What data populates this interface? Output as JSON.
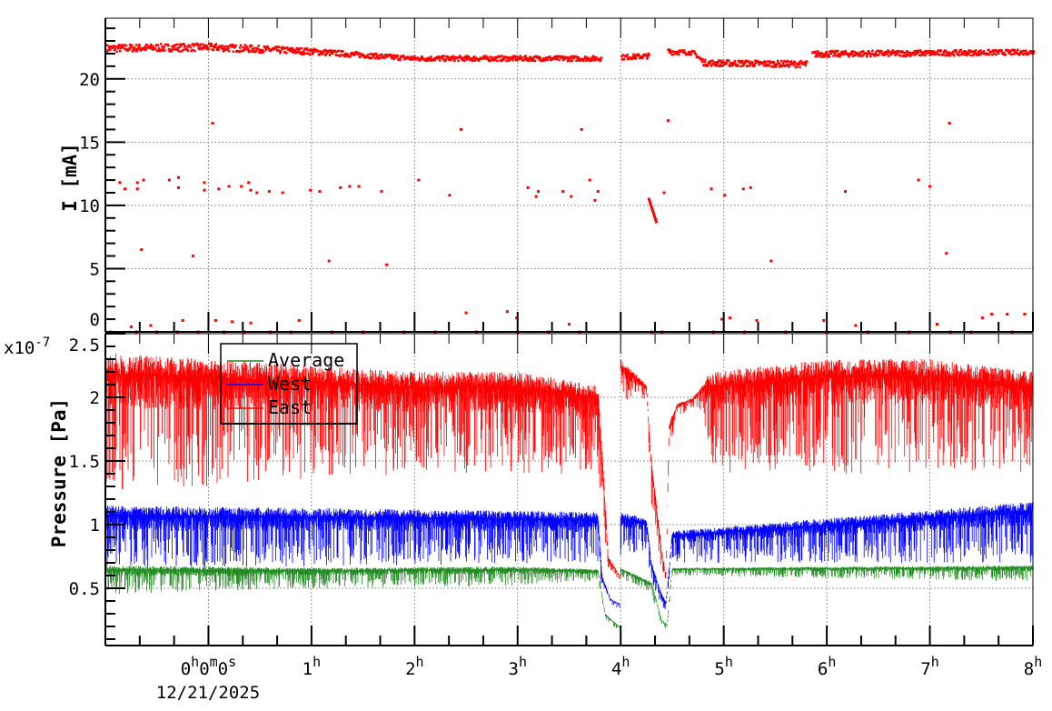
{
  "chart_data": [
    {
      "type": "scatter",
      "ylabel": "I [mA]",
      "ylim": [
        0,
        24.8
      ],
      "xlim_hours": [
        -1,
        8
      ],
      "yticks": [
        "0",
        "5",
        "10",
        "15",
        "20"
      ],
      "grid": true,
      "color": "#ff0000",
      "band_segments": [
        [
          [
            -1,
            22.2,
            22.8
          ],
          [
            0,
            22.3,
            22.9
          ],
          [
            1,
            22.0,
            22.5
          ],
          [
            1.6,
            21.7,
            22.1
          ],
          [
            2,
            21.5,
            21.9
          ],
          [
            3.8,
            21.5,
            21.9
          ]
        ],
        [
          [
            4.0,
            21.6,
            22.0
          ],
          [
            4.27,
            21.7,
            22.1
          ]
        ],
        [
          [
            4.45,
            22.0,
            22.5
          ],
          [
            4.7,
            22.0,
            22.3
          ],
          [
            4.8,
            21.1,
            21.6
          ],
          [
            5.8,
            21.0,
            21.5
          ]
        ],
        [
          [
            5.85,
            21.8,
            22.3
          ],
          [
            8,
            22.0,
            22.4
          ]
        ]
      ],
      "descending_trace": [
        [
          4.27,
          10.6
        ],
        [
          4.35,
          8.6
        ]
      ],
      "points": [
        [
          -0.86,
          11.8
        ],
        [
          -0.81,
          11.3
        ],
        [
          -0.69,
          11.8
        ],
        [
          -0.69,
          11.3
        ],
        [
          -0.65,
          6.5
        ],
        [
          -0.63,
          12
        ],
        [
          -0.38,
          12
        ],
        [
          -0.29,
          12.2
        ],
        [
          -0.29,
          11.4
        ],
        [
          -0.15,
          6
        ],
        [
          -0.04,
          11.8
        ],
        [
          -0.04,
          11.2
        ],
        [
          0.04,
          16.5
        ],
        [
          0.1,
          11.3
        ],
        [
          0.2,
          11.5
        ],
        [
          0.32,
          11.5
        ],
        [
          0.39,
          11.8
        ],
        [
          0.41,
          11.2
        ],
        [
          0.47,
          11
        ],
        [
          0.59,
          11.1
        ],
        [
          0.72,
          11
        ],
        [
          0.99,
          11.2
        ],
        [
          1.08,
          11.1
        ],
        [
          1.17,
          5.6
        ],
        [
          1.28,
          11.4
        ],
        [
          1.37,
          11.5
        ],
        [
          1.46,
          11.5
        ],
        [
          1.68,
          11.1
        ],
        [
          1.73,
          5.3
        ],
        [
          2.04,
          12
        ],
        [
          2.34,
          10.8
        ],
        [
          2.45,
          16
        ],
        [
          3.1,
          11.4
        ],
        [
          3.18,
          10.7
        ],
        [
          3.2,
          11.1
        ],
        [
          3.44,
          11.1
        ],
        [
          3.52,
          10.7
        ],
        [
          3.62,
          16
        ],
        [
          3.7,
          12
        ],
        [
          3.75,
          10.4
        ],
        [
          3.78,
          11.1
        ],
        [
          4.42,
          11
        ],
        [
          4.46,
          16.7
        ],
        [
          4.88,
          11.3
        ],
        [
          5.01,
          10.8
        ],
        [
          5.19,
          11.3
        ],
        [
          5.26,
          11.4
        ],
        [
          5.46,
          5.6
        ],
        [
          6.18,
          11.1
        ],
        [
          6.89,
          12
        ],
        [
          7.0,
          11.5
        ],
        [
          7.16,
          6.2
        ],
        [
          7.19,
          16.5
        ],
        [
          -0.75,
          0.4
        ],
        [
          -0.56,
          0.5
        ],
        [
          -0.25,
          0.9
        ],
        [
          0.07,
          0.9
        ],
        [
          0.23,
          0.8
        ],
        [
          0.41,
          0.7
        ],
        [
          0.88,
          0.9
        ],
        [
          2.5,
          1.5
        ],
        [
          2.9,
          1.6
        ],
        [
          2.99,
          1.1
        ],
        [
          3.5,
          0.6
        ],
        [
          4.98,
          1.0
        ],
        [
          5.06,
          1.1
        ],
        [
          5.32,
          0.9
        ],
        [
          5.97,
          0.9
        ],
        [
          6.28,
          0.5
        ],
        [
          7.07,
          0.6
        ],
        [
          7.51,
          1.1
        ],
        [
          7.6,
          1.4
        ],
        [
          7.75,
          1.4
        ],
        [
          7.92,
          1.4
        ],
        [
          -0.95,
          0
        ],
        [
          -0.7,
          0
        ],
        [
          -0.5,
          0
        ],
        [
          -0.3,
          0
        ],
        [
          -0.1,
          0
        ],
        [
          0.15,
          0
        ],
        [
          0.35,
          0
        ],
        [
          0.6,
          0
        ],
        [
          0.8,
          0
        ],
        [
          1.2,
          0
        ],
        [
          1.5,
          0
        ],
        [
          1.9,
          0
        ],
        [
          2.2,
          0
        ],
        [
          2.6,
          0
        ],
        [
          3.0,
          0
        ],
        [
          3.3,
          0
        ],
        [
          3.6,
          0
        ],
        [
          4.3,
          0
        ],
        [
          4.4,
          0
        ],
        [
          4.9,
          0
        ],
        [
          5.2,
          0
        ],
        [
          5.6,
          0
        ],
        [
          6.0,
          0
        ],
        [
          6.4,
          0
        ],
        [
          6.8,
          0
        ],
        [
          7.2,
          0
        ],
        [
          7.4,
          0
        ],
        [
          7.8,
          0
        ]
      ]
    },
    {
      "type": "line",
      "ylabel": "Pressure [Pa]",
      "exponent_label": "x10",
      "exponent": "-7",
      "ylim": [
        0.05,
        2.5
      ],
      "xlim_hours": [
        -1,
        8
      ],
      "yticks": [
        "0.5",
        "1",
        "1.5",
        "2",
        "2.5"
      ],
      "grid": true,
      "legend_position": "top-left",
      "series": [
        {
          "name": "East",
          "color": "#ff0000",
          "envelope": [
            [
              [
                -1,
                1.25,
                2.35
              ],
              [
                0,
                1.3,
                2.3
              ],
              [
                1,
                1.35,
                2.25
              ],
              [
                2,
                1.4,
                2.2
              ],
              [
                3,
                1.4,
                2.2
              ],
              [
                3.78,
                1.4,
                2.1
              ],
              [
                3.82,
                1.0,
                1.6
              ],
              [
                3.88,
                0.65,
                0.75
              ],
              [
                3.99,
                0.56,
                0.6
              ]
            ],
            [
              [
                4.0,
                1.95,
                2.3
              ],
              [
                4.25,
                1.98,
                2.1
              ],
              [
                4.3,
                1.1,
                1.5
              ],
              [
                4.4,
                0.6,
                0.8
              ],
              [
                4.44,
                0.55,
                0.6
              ],
              [
                4.47,
                1.6,
                1.8
              ],
              [
                4.55,
                1.85,
                1.95
              ],
              [
                4.7,
                1.9,
                2.0
              ],
              [
                4.8,
                1.9,
                2.1
              ],
              [
                4.85,
                1.4,
                2.2
              ],
              [
                6,
                1.4,
                2.3
              ],
              [
                7,
                1.4,
                2.3
              ],
              [
                8,
                1.4,
                2.2
              ]
            ]
          ]
        },
        {
          "name": "West",
          "color": "#0000ff",
          "envelope": [
            [
              [
                -1,
                0.65,
                1.15
              ],
              [
                3.78,
                0.7,
                1.1
              ],
              [
                3.82,
                0.45,
                0.6
              ],
              [
                3.9,
                0.38,
                0.42
              ],
              [
                3.99,
                0.33,
                0.38
              ]
            ],
            [
              [
                4.0,
                0.75,
                1.1
              ],
              [
                4.25,
                0.8,
                1.05
              ],
              [
                4.3,
                0.55,
                0.7
              ],
              [
                4.4,
                0.35,
                0.45
              ],
              [
                4.44,
                0.3,
                0.4
              ],
              [
                4.5,
                0.7,
                0.95
              ],
              [
                8,
                0.7,
                1.18
              ]
            ]
          ]
        },
        {
          "name": "Average",
          "color": "#228b22",
          "envelope": [
            [
              [
                -1,
                0.45,
                0.68
              ],
              [
                1,
                0.5,
                0.66
              ],
              [
                3,
                0.52,
                0.67
              ],
              [
                3.78,
                0.55,
                0.65
              ],
              [
                3.85,
                0.25,
                0.3
              ],
              [
                3.99,
                0.16,
                0.2
              ]
            ],
            [
              [
                4.0,
                0.58,
                0.66
              ],
              [
                4.3,
                0.45,
                0.55
              ],
              [
                4.4,
                0.2,
                0.25
              ],
              [
                4.45,
                0.17,
                0.22
              ],
              [
                4.5,
                0.6,
                0.66
              ],
              [
                8,
                0.55,
                0.68
              ]
            ]
          ]
        }
      ],
      "legend": [
        "Average",
        "West",
        "East"
      ]
    }
  ],
  "x_axis": {
    "ticks": [
      {
        "hour": 0,
        "label": "0",
        "sup": "h",
        "extra": "0m0s"
      },
      {
        "hour": 1,
        "label": "1",
        "sup": "h"
      },
      {
        "hour": 2,
        "label": "2",
        "sup": "h"
      },
      {
        "hour": 3,
        "label": "3",
        "sup": "h"
      },
      {
        "hour": 4,
        "label": "4",
        "sup": "h"
      },
      {
        "hour": 5,
        "label": "5",
        "sup": "h"
      },
      {
        "hour": 6,
        "label": "6",
        "sup": "h"
      },
      {
        "hour": 7,
        "label": "7",
        "sup": "h"
      },
      {
        "hour": 8,
        "label": "8",
        "sup": "h"
      }
    ],
    "date": "12/21/2025"
  }
}
